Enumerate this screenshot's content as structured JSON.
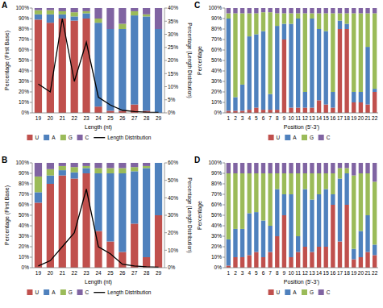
{
  "chart_data": [
    {
      "type": "bar",
      "title": "A",
      "stacked": true,
      "legend": "bottom",
      "grid": false,
      "x_label": "Length (nt)",
      "y_label": "Percentage (First Base)",
      "y2_label": "Percentage (Length Distribution)",
      "categories": [
        "19",
        "20",
        "21",
        "22",
        "23",
        "24",
        "25",
        "26",
        "27",
        "28",
        "29"
      ],
      "ylim": [
        0,
        100
      ],
      "yticks": [
        {
          "value": 0,
          "label": "0%"
        },
        {
          "value": 10,
          "label": "10%"
        },
        {
          "value": 20,
          "label": "20%"
        },
        {
          "value": 30,
          "label": "30%"
        },
        {
          "value": 40,
          "label": "40%"
        },
        {
          "value": 50,
          "label": "50%"
        },
        {
          "value": 60,
          "label": "60%"
        },
        {
          "value": 70,
          "label": "70%"
        },
        {
          "value": 80,
          "label": "80%"
        },
        {
          "value": 90,
          "label": "90%"
        },
        {
          "value": 100,
          "label": "100%"
        }
      ],
      "y2lim": [
        0,
        40
      ],
      "y2ticks": [
        {
          "value": 0,
          "label": "0%"
        },
        {
          "value": 5,
          "label": "5%"
        },
        {
          "value": 10,
          "label": "10%"
        },
        {
          "value": 15,
          "label": "15%"
        },
        {
          "value": 20,
          "label": "20%"
        },
        {
          "value": 25,
          "label": "25%"
        },
        {
          "value": 30,
          "label": "30%"
        },
        {
          "value": 35,
          "label": "35%"
        },
        {
          "value": 40,
          "label": "40%"
        }
      ],
      "series": [
        {
          "name": "U",
          "color": "#c0504d",
          "values": [
            89,
            86,
            90,
            88,
            90,
            6,
            2,
            2,
            8,
            2,
            0
          ]
        },
        {
          "name": "A",
          "color": "#4f81bd",
          "values": [
            5,
            8,
            4,
            4,
            5,
            80,
            78,
            78,
            85,
            90,
            80
          ]
        },
        {
          "name": "G",
          "color": "#9bbb59",
          "values": [
            4,
            4,
            3,
            4,
            2,
            4,
            0,
            5,
            4,
            2,
            0
          ]
        },
        {
          "name": "C",
          "color": "#8064a2",
          "values": [
            2,
            2,
            3,
            4,
            3,
            10,
            20,
            15,
            3,
            6,
            20
          ]
        },
        {
          "name": "Length Distribution",
          "type": "line",
          "axis": "y2",
          "color": "#000000",
          "values": [
            11,
            8,
            36,
            12,
            27,
            6,
            3,
            1,
            0.5,
            0.3,
            0.2
          ]
        }
      ]
    },
    {
      "type": "bar",
      "title": "B",
      "stacked": true,
      "legend": "bottom",
      "grid": false,
      "x_label": "Length (nt)",
      "y_label": "Percentage (First Base)",
      "y2_label": "Percentage (Length Distribution)",
      "categories": [
        "19",
        "20",
        "21",
        "22",
        "23",
        "24",
        "25",
        "26",
        "27",
        "28",
        "29"
      ],
      "ylim": [
        0,
        100
      ],
      "yticks": [
        {
          "value": 0,
          "label": "0%"
        },
        {
          "value": 10,
          "label": "10%"
        },
        {
          "value": 20,
          "label": "20%"
        },
        {
          "value": 30,
          "label": "30%"
        },
        {
          "value": 40,
          "label": "40%"
        },
        {
          "value": 50,
          "label": "50%"
        },
        {
          "value": 60,
          "label": "60%"
        },
        {
          "value": 70,
          "label": "70%"
        },
        {
          "value": 80,
          "label": "80%"
        },
        {
          "value": 90,
          "label": "90%"
        },
        {
          "value": 100,
          "label": "100%"
        }
      ],
      "y2lim": [
        0,
        60
      ],
      "y2ticks": [
        {
          "value": 0,
          "label": "0%"
        },
        {
          "value": 10,
          "label": "10%"
        },
        {
          "value": 20,
          "label": "20%"
        },
        {
          "value": 30,
          "label": "30%"
        },
        {
          "value": 40,
          "label": "40%"
        },
        {
          "value": 50,
          "label": "50%"
        },
        {
          "value": 60,
          "label": "60%"
        }
      ],
      "series": [
        {
          "name": "U",
          "color": "#c0504d",
          "values": [
            62,
            80,
            88,
            85,
            90,
            35,
            25,
            15,
            42,
            10,
            50
          ]
        },
        {
          "name": "A",
          "color": "#4f81bd",
          "values": [
            10,
            8,
            5,
            6,
            5,
            55,
            65,
            75,
            50,
            85,
            50
          ]
        },
        {
          "name": "G",
          "color": "#9bbb59",
          "values": [
            15,
            6,
            4,
            5,
            2,
            5,
            5,
            5,
            4,
            2,
            0
          ]
        },
        {
          "name": "C",
          "color": "#8064a2",
          "values": [
            13,
            6,
            3,
            4,
            3,
            5,
            5,
            5,
            4,
            3,
            0
          ]
        },
        {
          "name": "Length Distribution",
          "type": "line",
          "axis": "y2",
          "color": "#000000",
          "values": [
            1,
            4,
            12,
            20,
            45,
            12,
            8,
            2,
            1,
            0.5,
            0.3
          ]
        }
      ]
    },
    {
      "type": "bar",
      "title": "C",
      "stacked": true,
      "legend": "bottom",
      "grid": false,
      "x_label": "Position (5'-3')",
      "y_label": "Percentage",
      "categories": [
        "1",
        "2",
        "3",
        "4",
        "5",
        "6",
        "7",
        "8",
        "9",
        "10",
        "11",
        "12",
        "13",
        "14",
        "15",
        "16",
        "17",
        "18",
        "19",
        "20",
        "21",
        "22"
      ],
      "ylim": [
        0,
        100
      ],
      "yticks": [
        {
          "value": 0,
          "label": "0%"
        },
        {
          "value": 10,
          "label": "10%"
        },
        {
          "value": 20,
          "label": "20%"
        },
        {
          "value": 30,
          "label": "30%"
        },
        {
          "value": 40,
          "label": "40%"
        },
        {
          "value": 50,
          "label": "50%"
        },
        {
          "value": 60,
          "label": "60%"
        },
        {
          "value": 70,
          "label": "70%"
        },
        {
          "value": 80,
          "label": "80%"
        },
        {
          "value": 90,
          "label": "90%"
        },
        {
          "value": 100,
          "label": "100%"
        }
      ],
      "series": [
        {
          "name": "U",
          "color": "#c0504d",
          "values": [
            2,
            2,
            2,
            3,
            5,
            3,
            3,
            3,
            70,
            5,
            5,
            5,
            5,
            12,
            8,
            5,
            80,
            80,
            10,
            10,
            8,
            20
          ]
        },
        {
          "name": "A",
          "color": "#4f81bd",
          "values": [
            88,
            13,
            25,
            70,
            70,
            75,
            15,
            80,
            15,
            80,
            85,
            15,
            85,
            68,
            70,
            15,
            8,
            5,
            10,
            10,
            55,
            3
          ]
        },
        {
          "name": "G",
          "color": "#9bbb59",
          "values": [
            5,
            80,
            68,
            22,
            20,
            18,
            78,
            12,
            10,
            10,
            5,
            75,
            5,
            15,
            17,
            75,
            7,
            10,
            75,
            75,
            32,
            72
          ]
        },
        {
          "name": "C",
          "color": "#8064a2",
          "values": [
            5,
            5,
            5,
            5,
            5,
            4,
            4,
            5,
            5,
            5,
            5,
            5,
            5,
            5,
            5,
            5,
            5,
            5,
            5,
            5,
            5,
            5
          ]
        }
      ]
    },
    {
      "type": "bar",
      "title": "D",
      "stacked": true,
      "legend": "bottom",
      "grid": false,
      "x_label": "Position (5'-3')",
      "y_label": "Percentage",
      "categories": [
        "1",
        "2",
        "3",
        "4",
        "5",
        "6",
        "7",
        "8",
        "9",
        "10",
        "11",
        "12",
        "13",
        "14",
        "15",
        "16",
        "17",
        "18",
        "19",
        "20",
        "21",
        "22"
      ],
      "ylim": [
        0,
        100
      ],
      "yticks": [
        {
          "value": 0,
          "label": "0%"
        },
        {
          "value": 10,
          "label": "10%"
        },
        {
          "value": 20,
          "label": "20%"
        },
        {
          "value": 30,
          "label": "30%"
        },
        {
          "value": 40,
          "label": "40%"
        },
        {
          "value": 50,
          "label": "50%"
        },
        {
          "value": 60,
          "label": "60%"
        },
        {
          "value": 70,
          "label": "70%"
        },
        {
          "value": 80,
          "label": "80%"
        },
        {
          "value": 90,
          "label": "90%"
        },
        {
          "value": 100,
          "label": "100%"
        }
      ],
      "series": [
        {
          "name": "U",
          "color": "#c0504d",
          "values": [
            2,
            10,
            10,
            12,
            15,
            10,
            15,
            30,
            50,
            10,
            15,
            20,
            15,
            20,
            20,
            60,
            25,
            60,
            8,
            10,
            15,
            12
          ]
        },
        {
          "name": "A",
          "color": "#4f81bd",
          "values": [
            25,
            27,
            27,
            40,
            38,
            35,
            25,
            45,
            20,
            60,
            15,
            55,
            50,
            50,
            55,
            10,
            60,
            30,
            10,
            25,
            35,
            10
          ]
        },
        {
          "name": "G",
          "color": "#9bbb59",
          "values": [
            63,
            53,
            53,
            38,
            37,
            45,
            50,
            15,
            20,
            20,
            60,
            15,
            25,
            20,
            15,
            20,
            10,
            5,
            70,
            55,
            40,
            60
          ]
        },
        {
          "name": "C",
          "color": "#8064a2",
          "values": [
            10,
            10,
            10,
            10,
            10,
            10,
            10,
            10,
            10,
            10,
            10,
            10,
            10,
            10,
            10,
            10,
            5,
            5,
            12,
            10,
            10,
            18
          ]
        }
      ]
    }
  ]
}
